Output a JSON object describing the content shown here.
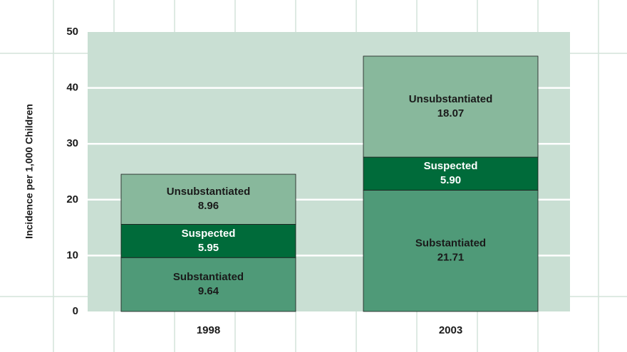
{
  "chart_data": {
    "type": "stacked_bar",
    "y_label": "Incidence per 1,000 Children",
    "categories": [
      "1998",
      "2003"
    ],
    "series": [
      {
        "name": "Substantiated",
        "color": "#4f9a78",
        "text_color": "#1a1a1a",
        "values": [
          9.64,
          21.71
        ]
      },
      {
        "name": "Suspected",
        "color": "#006b3a",
        "text_color": "#ffffff",
        "values": [
          5.95,
          5.9
        ],
        "value_labels": [
          "5.95",
          "5.90"
        ]
      },
      {
        "name": "Unsubstantiated",
        "color": "#88b89c",
        "text_color": "#1a1a1a",
        "values": [
          8.96,
          18.07
        ]
      }
    ],
    "ylim": [
      0,
      50
    ],
    "yticks": [
      0,
      10,
      20,
      30,
      40,
      50
    ],
    "grid": true
  }
}
